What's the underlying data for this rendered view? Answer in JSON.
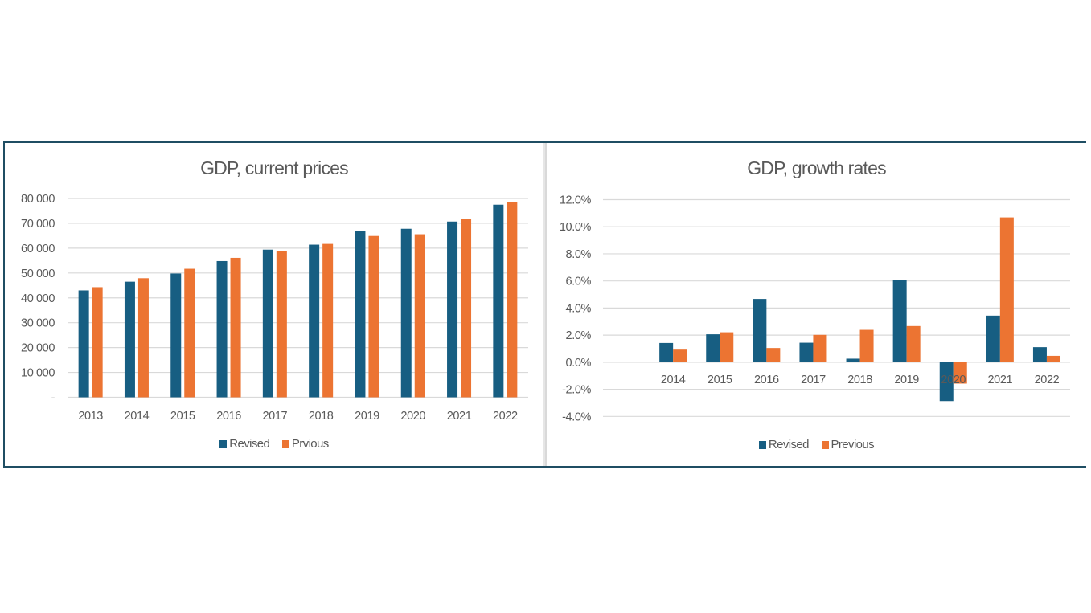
{
  "colors": {
    "revised": "#175e82",
    "previous": "#ec7432",
    "grid": "#d9d9d9",
    "text": "#595959",
    "frame": "#1f4e63"
  },
  "chart_data": [
    {
      "type": "bar",
      "title": "GDP, current prices",
      "xlabel": "",
      "ylabel": "",
      "categories": [
        "2013",
        "2014",
        "2015",
        "2016",
        "2017",
        "2018",
        "2019",
        "2020",
        "2021",
        "2022"
      ],
      "series": [
        {
          "name": "Revised",
          "values": [
            43000,
            46500,
            49800,
            54800,
            59400,
            61400,
            66800,
            67800,
            70700,
            77500
          ]
        },
        {
          "name": "Prvious",
          "values": [
            44300,
            47900,
            51700,
            56100,
            58700,
            61700,
            64900,
            65600,
            71600,
            78400
          ]
        }
      ],
      "ylim": [
        0,
        80000
      ],
      "yticks": [
        0,
        10000,
        20000,
        30000,
        40000,
        50000,
        60000,
        70000,
        80000
      ],
      "ytick_labels": [
        "-",
        "10 000",
        "20 000",
        "30 000",
        "40 000",
        "50 000",
        "60 000",
        "70 000",
        "80 000"
      ],
      "grid": true,
      "legend_position": "bottom"
    },
    {
      "type": "bar",
      "title": "GDP, growth rates",
      "xlabel": "",
      "ylabel": "",
      "categories": [
        "2014",
        "2015",
        "2016",
        "2017",
        "2018",
        "2019",
        "2020",
        "2021",
        "2022"
      ],
      "leading_empty_category": true,
      "series": [
        {
          "name": "Revised",
          "values": [
            1.42,
            2.06,
            4.67,
            1.44,
            0.26,
            6.05,
            -2.87,
            3.44,
            1.11
          ]
        },
        {
          "name": "Previous",
          "values": [
            0.93,
            2.21,
            1.05,
            2.02,
            2.39,
            2.67,
            -1.58,
            10.69,
            0.47
          ]
        }
      ],
      "ylim": [
        -4,
        12
      ],
      "yticks": [
        -4,
        -2,
        0,
        2,
        4,
        6,
        8,
        10,
        12
      ],
      "ytick_labels": [
        "-4.0%",
        "-2.0%",
        "0.0%",
        "2.0%",
        "4.0%",
        "6.0%",
        "8.0%",
        "10.0%",
        "12.0%"
      ],
      "grid": true,
      "legend_position": "bottom"
    }
  ]
}
